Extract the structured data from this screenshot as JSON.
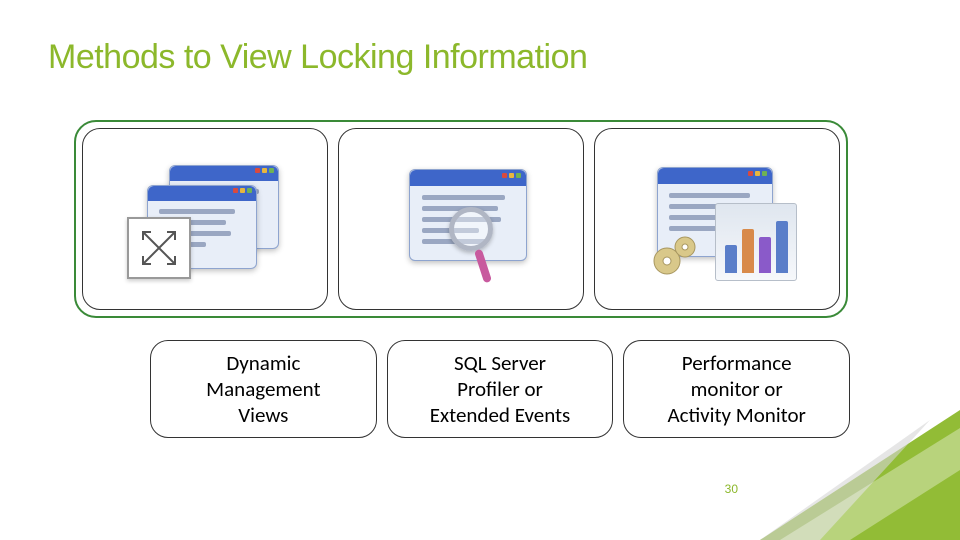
{
  "title": {
    "text": "Methods to View Locking Information",
    "color": "#8cb82b",
    "fontsize": 34
  },
  "layout": {
    "outer_border_color": "#3a8a38",
    "inner_border_color": "#333333",
    "label_border_color": "#333333",
    "label_fontsize": 21,
    "label_color": "#000000"
  },
  "items": [
    {
      "label": "Dynamic\nManagement\nViews"
    },
    {
      "label": "SQL Server\nProfiler or\nExtended Events"
    },
    {
      "label": "Performance\nmonitor or\nActivity Monitor"
    }
  ],
  "icons": {
    "window_header_color": "#3e66c9",
    "window_body_color": "#e8eef8",
    "window_border_color": "#8ea4cf",
    "line_color": "#9aa7c2",
    "dot_red": "#d84a3f",
    "dot_yellow": "#e7b63e",
    "dot_green": "#6fb254",
    "magnifier_ring": "#b0b6c4",
    "magnifier_handle": "#c85a9e",
    "gear_color": "#d9c88a",
    "chart_bars": [
      "#5a7ec9",
      "#d88a4a",
      "#8a5ac9",
      "#5a7ec9"
    ],
    "chart_heights": [
      28,
      44,
      36,
      52
    ]
  },
  "pagenum": {
    "value": "30",
    "color": "#8cb82b"
  },
  "accent": {
    "fill": "#8cb82b",
    "shadow": "#d6d6d6"
  }
}
